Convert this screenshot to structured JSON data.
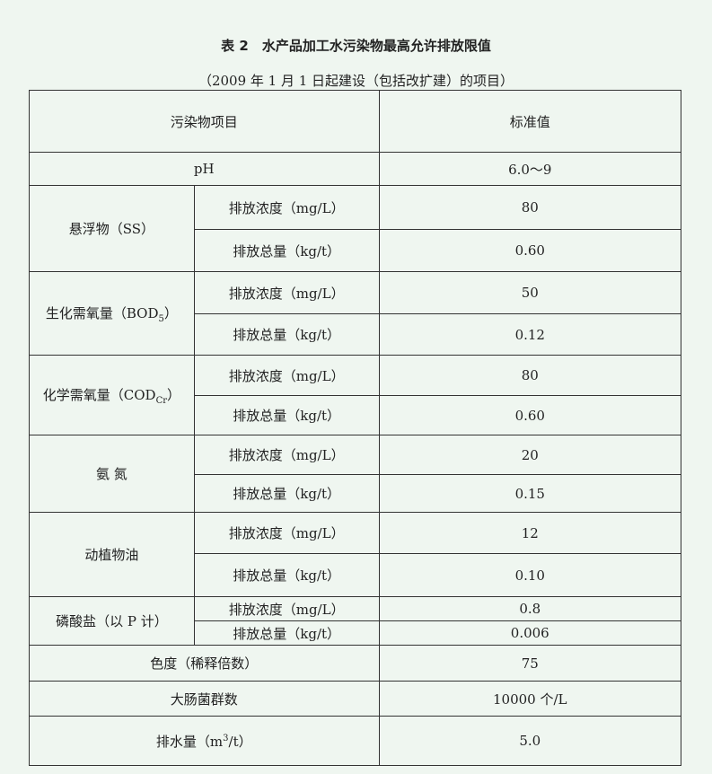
{
  "title": "表 2　水产品加工水污染物最高允许排放限值",
  "subtitle": "（2009 年 1 月 1 日起建设（包括改扩建）的项目）",
  "header": {
    "item": "污染物项目",
    "standard": "标准值"
  },
  "labels": {
    "concentration": "排放浓度（mg/L）",
    "total": "排放总量（kg/t）"
  },
  "rows": {
    "ph": {
      "name": "pH",
      "value": "6.0～9"
    },
    "ss": {
      "name": "悬浮物（SS）",
      "concentration": "80",
      "total": "0.60"
    },
    "bod": {
      "name_pre": "生化需氧量（BOD",
      "sub": "5",
      "name_post": "）",
      "concentration": "50",
      "total": "0.12"
    },
    "cod": {
      "name_pre": "化学需氧量（COD",
      "sub": "Cr",
      "name_post": "）",
      "concentration": "80",
      "total": "0.60"
    },
    "nh": {
      "name": "氨 氮",
      "concentration": "20",
      "total": "0.15"
    },
    "oil": {
      "name": "动植物油",
      "concentration": "12",
      "total": "0.10"
    },
    "p": {
      "name": "磷酸盐（以 P 计）",
      "concentration": "0.8",
      "total": "0.006"
    },
    "color": {
      "name": "色度（稀释倍数）",
      "value": "75"
    },
    "coliform": {
      "name": "大肠菌群数",
      "value": "10000 个/L"
    },
    "discharge": {
      "name_pre": "排水量（m",
      "sup": "3",
      "name_post": "/t）",
      "value": "5.0"
    }
  }
}
